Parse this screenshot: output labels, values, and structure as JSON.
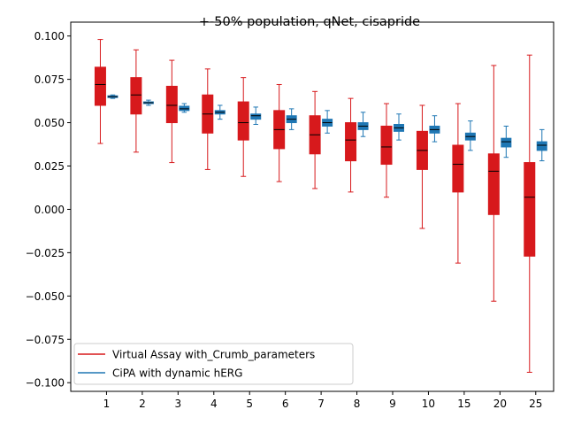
{
  "chart_data": {
    "type": "box",
    "title": "+-50% population, qNet, cisapride",
    "xlabel": "",
    "ylabel": "",
    "categories": [
      "1",
      "2",
      "3",
      "4",
      "5",
      "6",
      "7",
      "8",
      "9",
      "10",
      "15",
      "20",
      "25"
    ],
    "ylim": [
      -0.105,
      0.108
    ],
    "yticks": [
      -0.1,
      -0.075,
      -0.05,
      -0.025,
      0.0,
      0.025,
      0.05,
      0.075,
      0.1
    ],
    "ytick_labels": [
      "−0.100",
      "−0.075",
      "−0.050",
      "−0.025",
      "0.000",
      "0.025",
      "0.050",
      "0.075",
      "0.100"
    ],
    "legend_position": "lower-left",
    "grid": false,
    "series": [
      {
        "name": "Virtual Assay with_Crumb_parameters",
        "color": "#d7191c",
        "boxes": [
          {
            "whislo": 0.038,
            "q1": 0.06,
            "med": 0.072,
            "q3": 0.082,
            "whishi": 0.098
          },
          {
            "whislo": 0.033,
            "q1": 0.055,
            "med": 0.066,
            "q3": 0.076,
            "whishi": 0.092
          },
          {
            "whislo": 0.027,
            "q1": 0.05,
            "med": 0.06,
            "q3": 0.071,
            "whishi": 0.086
          },
          {
            "whislo": 0.023,
            "q1": 0.044,
            "med": 0.055,
            "q3": 0.066,
            "whishi": 0.081
          },
          {
            "whislo": 0.019,
            "q1": 0.04,
            "med": 0.05,
            "q3": 0.062,
            "whishi": 0.076
          },
          {
            "whislo": 0.016,
            "q1": 0.035,
            "med": 0.046,
            "q3": 0.057,
            "whishi": 0.072
          },
          {
            "whislo": 0.012,
            "q1": 0.032,
            "med": 0.043,
            "q3": 0.054,
            "whishi": 0.068
          },
          {
            "whislo": 0.01,
            "q1": 0.028,
            "med": 0.04,
            "q3": 0.05,
            "whishi": 0.064
          },
          {
            "whislo": 0.007,
            "q1": 0.026,
            "med": 0.036,
            "q3": 0.048,
            "whishi": 0.061
          },
          {
            "whislo": -0.011,
            "q1": 0.023,
            "med": 0.034,
            "q3": 0.045,
            "whishi": 0.06
          },
          {
            "whislo": -0.031,
            "q1": 0.01,
            "med": 0.026,
            "q3": 0.037,
            "whishi": 0.061
          },
          {
            "whislo": -0.053,
            "q1": -0.003,
            "med": 0.022,
            "q3": 0.032,
            "whishi": 0.083
          },
          {
            "whislo": -0.094,
            "q1": -0.027,
            "med": 0.007,
            "q3": 0.027,
            "whishi": 0.089
          }
        ]
      },
      {
        "name": "CiPA with dynamic hERG",
        "color": "#1f77b4",
        "boxes": [
          {
            "whislo": 0.064,
            "q1": 0.0645,
            "med": 0.065,
            "q3": 0.0655,
            "whishi": 0.066
          },
          {
            "whislo": 0.06,
            "q1": 0.061,
            "med": 0.0615,
            "q3": 0.062,
            "whishi": 0.063
          },
          {
            "whislo": 0.056,
            "q1": 0.057,
            "med": 0.058,
            "q3": 0.0595,
            "whishi": 0.061
          },
          {
            "whislo": 0.052,
            "q1": 0.055,
            "med": 0.056,
            "q3": 0.057,
            "whishi": 0.06
          },
          {
            "whislo": 0.049,
            "q1": 0.052,
            "med": 0.054,
            "q3": 0.055,
            "whishi": 0.059
          },
          {
            "whislo": 0.046,
            "q1": 0.05,
            "med": 0.052,
            "q3": 0.054,
            "whishi": 0.058
          },
          {
            "whislo": 0.044,
            "q1": 0.048,
            "med": 0.05,
            "q3": 0.052,
            "whishi": 0.057
          },
          {
            "whislo": 0.042,
            "q1": 0.046,
            "med": 0.048,
            "q3": 0.05,
            "whishi": 0.056
          },
          {
            "whislo": 0.04,
            "q1": 0.045,
            "med": 0.047,
            "q3": 0.049,
            "whishi": 0.055
          },
          {
            "whislo": 0.039,
            "q1": 0.044,
            "med": 0.046,
            "q3": 0.048,
            "whishi": 0.054
          },
          {
            "whislo": 0.034,
            "q1": 0.04,
            "med": 0.042,
            "q3": 0.044,
            "whishi": 0.051
          },
          {
            "whislo": 0.03,
            "q1": 0.036,
            "med": 0.039,
            "q3": 0.041,
            "whishi": 0.048
          },
          {
            "whislo": 0.028,
            "q1": 0.034,
            "med": 0.037,
            "q3": 0.039,
            "whishi": 0.046
          }
        ]
      }
    ]
  }
}
